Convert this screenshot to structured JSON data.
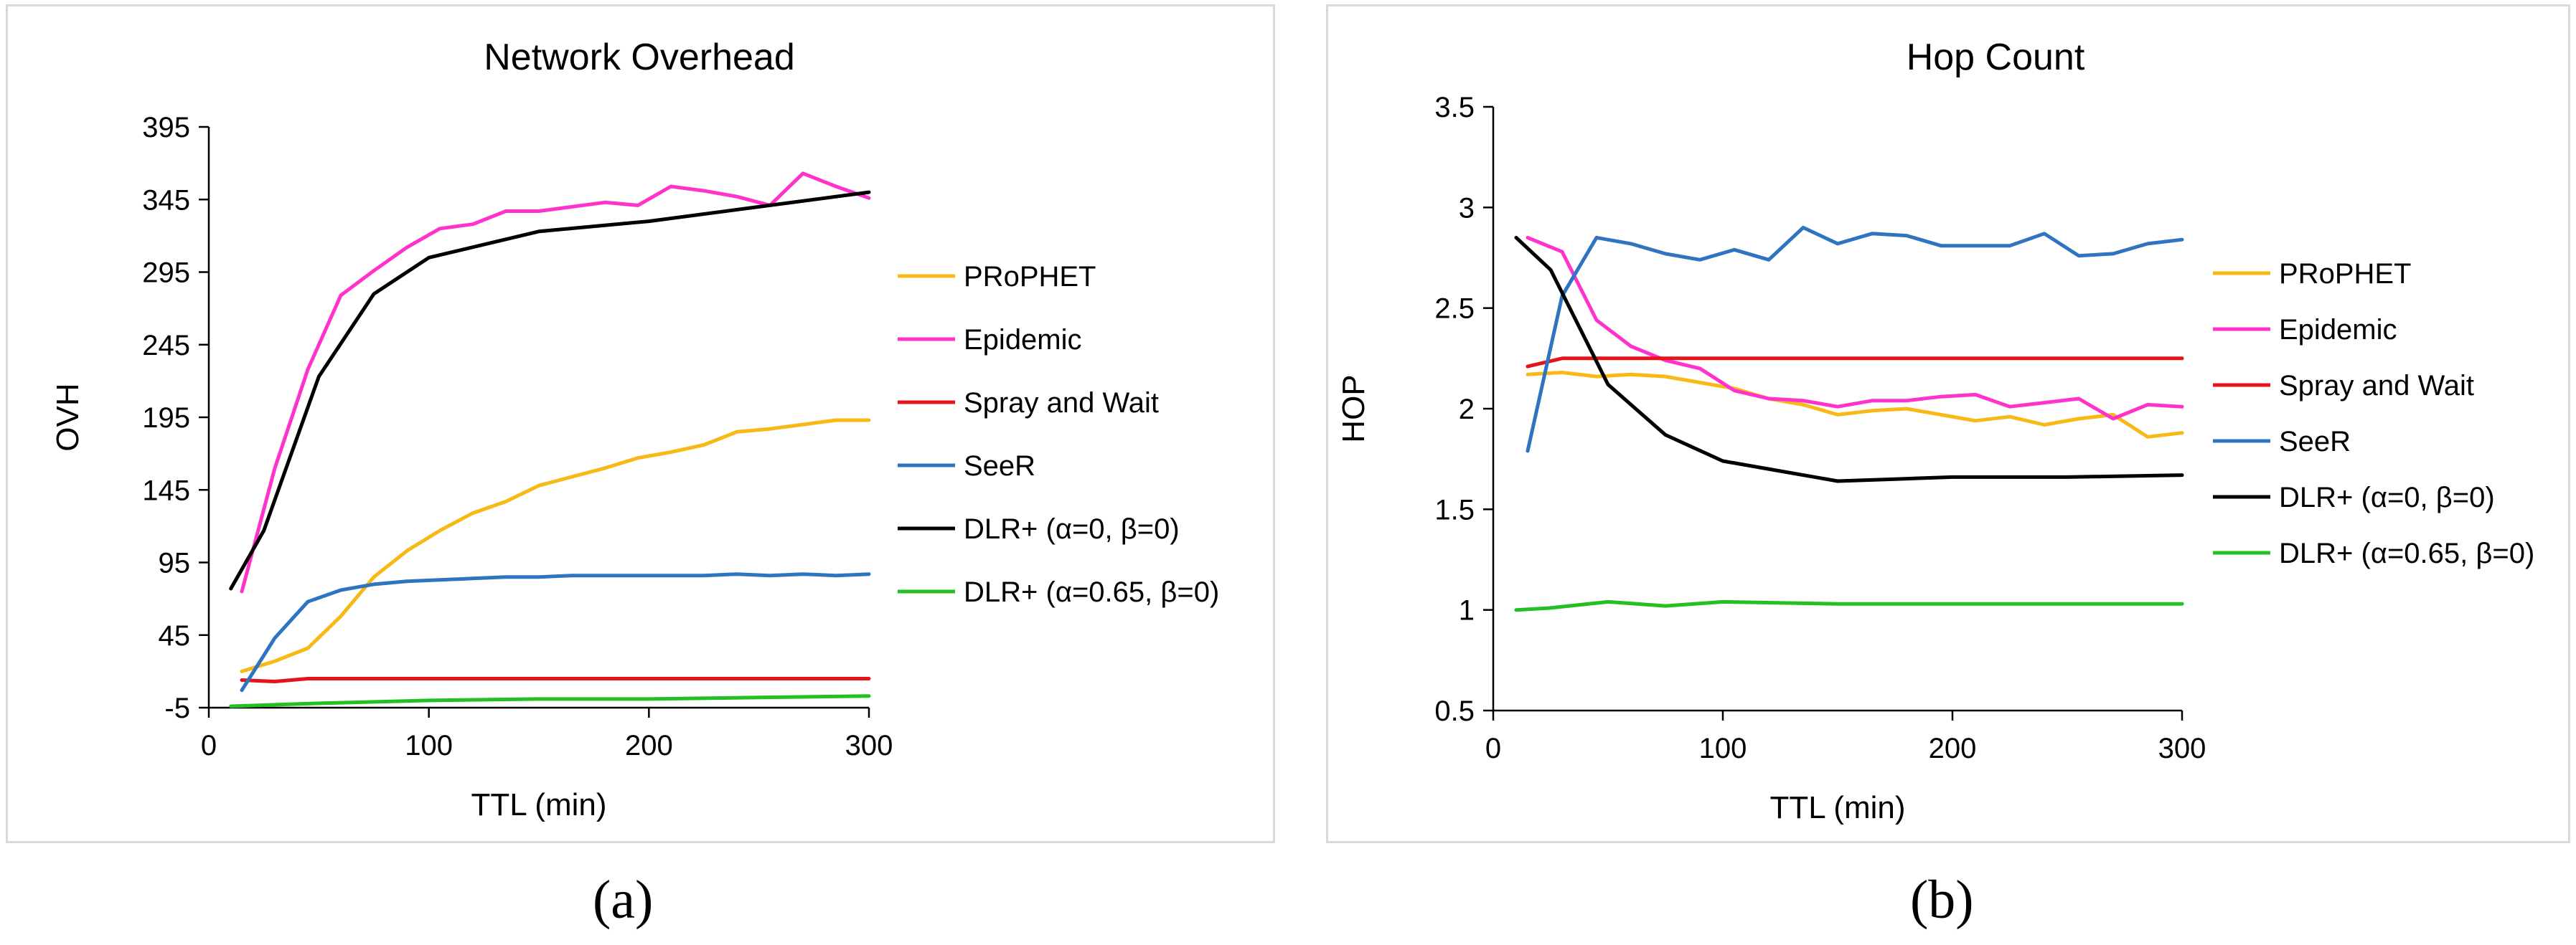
{
  "colors": {
    "PRoPHET": "#f6b915",
    "Epidemic": "#ff33cc",
    "Spray and Wait": "#e8121b",
    "SeeR": "#2f74c0",
    "DLR+ (α=0, β=0)": "#000000",
    "DLR+ (α=0.65, β=0)": "#22c022",
    "axis": "#000000",
    "gridline": "#d9d9d9"
  },
  "captions": {
    "a": "(a)",
    "b": "(b)"
  },
  "chart_data": [
    {
      "type": "line",
      "title": "Network Overhead",
      "xlabel": "TTL (min)",
      "ylabel": "OVH",
      "xlim": [
        0,
        300
      ],
      "ylim": [
        -5,
        395
      ],
      "xticks": [
        0,
        100,
        200,
        300
      ],
      "yticks": [
        -5,
        45,
        95,
        145,
        195,
        245,
        295,
        345,
        395
      ],
      "grid": false,
      "legend_position": "right",
      "series": [
        {
          "name": "PRoPHET",
          "x": [
            15,
            30,
            45,
            60,
            75,
            90,
            105,
            120,
            135,
            150,
            165,
            180,
            195,
            210,
            225,
            240,
            255,
            270,
            285,
            300
          ],
          "y": [
            20,
            27,
            36,
            58,
            85,
            103,
            117,
            129,
            137,
            148,
            154,
            160,
            167,
            171,
            176,
            185,
            187,
            190,
            193,
            193
          ]
        },
        {
          "name": "Epidemic",
          "x": [
            15,
            30,
            45,
            60,
            75,
            90,
            105,
            120,
            135,
            150,
            165,
            180,
            195,
            210,
            225,
            240,
            255,
            270,
            285,
            300
          ],
          "y": [
            75,
            160,
            228,
            279,
            296,
            312,
            325,
            328,
            337,
            337,
            340,
            343,
            341,
            354,
            351,
            347,
            341,
            363,
            354,
            346
          ]
        },
        {
          "name": "Spray and Wait",
          "x": [
            15,
            30,
            45,
            60,
            75,
            90,
            105,
            120,
            135,
            150,
            165,
            180,
            195,
            210,
            225,
            240,
            255,
            270,
            285,
            300
          ],
          "y": [
            14,
            13,
            15,
            15,
            15,
            15,
            15,
            15,
            15,
            15,
            15,
            15,
            15,
            15,
            15,
            15,
            15,
            15,
            15,
            15
          ]
        },
        {
          "name": "SeeR",
          "x": [
            15,
            30,
            45,
            60,
            75,
            90,
            105,
            120,
            135,
            150,
            165,
            180,
            195,
            210,
            225,
            240,
            255,
            270,
            285,
            300
          ],
          "y": [
            7,
            43,
            68,
            76,
            80,
            82,
            83,
            84,
            85,
            85,
            86,
            86,
            86,
            86,
            86,
            87,
            86,
            87,
            86,
            87
          ]
        },
        {
          "name": "DLR+ (α=0, β=0)",
          "x": [
            10,
            25,
            50,
            75,
            100,
            150,
            200,
            250,
            300
          ],
          "y": [
            77,
            117,
            223,
            280,
            305,
            323,
            330,
            340,
            350
          ]
        },
        {
          "name": "DLR+ (α=0.65, β=0)",
          "x": [
            10,
            50,
            100,
            150,
            200,
            250,
            300
          ],
          "y": [
            -4,
            -2,
            0,
            1,
            1,
            2,
            3
          ]
        }
      ]
    },
    {
      "type": "line",
      "title": "Hop Count",
      "xlabel": "TTL (min)",
      "ylabel": "HOP",
      "xlim": [
        0,
        300
      ],
      "ylim": [
        0.5,
        3.5
      ],
      "xticks": [
        0,
        100,
        200,
        300
      ],
      "yticks": [
        0.5,
        1,
        1.5,
        2,
        2.5,
        3,
        3.5
      ],
      "grid": false,
      "legend_position": "right",
      "series": [
        {
          "name": "PRoPHET",
          "x": [
            15,
            30,
            45,
            60,
            75,
            90,
            105,
            120,
            135,
            150,
            165,
            180,
            195,
            210,
            225,
            240,
            255,
            270,
            285,
            300
          ],
          "y": [
            2.17,
            2.18,
            2.16,
            2.17,
            2.16,
            2.13,
            2.1,
            2.05,
            2.02,
            1.97,
            1.99,
            2.0,
            1.97,
            1.94,
            1.96,
            1.92,
            1.95,
            1.97,
            1.86,
            1.88
          ]
        },
        {
          "name": "Epidemic",
          "x": [
            15,
            30,
            45,
            60,
            75,
            90,
            105,
            120,
            135,
            150,
            165,
            180,
            195,
            210,
            225,
            240,
            255,
            270,
            285,
            300
          ],
          "y": [
            2.85,
            2.78,
            2.44,
            2.31,
            2.24,
            2.2,
            2.09,
            2.05,
            2.04,
            2.01,
            2.04,
            2.04,
            2.06,
            2.07,
            2.01,
            2.03,
            2.05,
            1.95,
            2.02,
            2.01
          ]
        },
        {
          "name": "Spray and Wait",
          "x": [
            15,
            30,
            45,
            60,
            75,
            90,
            105,
            120,
            135,
            150,
            165,
            180,
            195,
            210,
            225,
            240,
            255,
            270,
            285,
            300
          ],
          "y": [
            2.21,
            2.25,
            2.25,
            2.25,
            2.25,
            2.25,
            2.25,
            2.25,
            2.25,
            2.25,
            2.25,
            2.25,
            2.25,
            2.25,
            2.25,
            2.25,
            2.25,
            2.25,
            2.25,
            2.25
          ]
        },
        {
          "name": "SeeR",
          "x": [
            15,
            30,
            45,
            60,
            75,
            90,
            105,
            120,
            135,
            150,
            165,
            180,
            195,
            210,
            225,
            240,
            255,
            270,
            285,
            300
          ],
          "y": [
            1.79,
            2.56,
            2.85,
            2.82,
            2.77,
            2.74,
            2.79,
            2.74,
            2.9,
            2.82,
            2.87,
            2.86,
            2.81,
            2.81,
            2.81,
            2.87,
            2.76,
            2.77,
            2.82,
            2.84
          ]
        },
        {
          "name": "DLR+ (α=0, β=0)",
          "x": [
            10,
            25,
            50,
            75,
            100,
            125,
            150,
            175,
            200,
            250,
            300
          ],
          "y": [
            2.85,
            2.69,
            2.12,
            1.87,
            1.74,
            1.69,
            1.64,
            1.65,
            1.66,
            1.66,
            1.67
          ]
        },
        {
          "name": "DLR+ (α=0.65, β=0)",
          "x": [
            10,
            25,
            50,
            75,
            100,
            150,
            200,
            250,
            300
          ],
          "y": [
            1.0,
            1.01,
            1.04,
            1.02,
            1.04,
            1.03,
            1.03,
            1.03,
            1.03
          ]
        }
      ]
    }
  ]
}
